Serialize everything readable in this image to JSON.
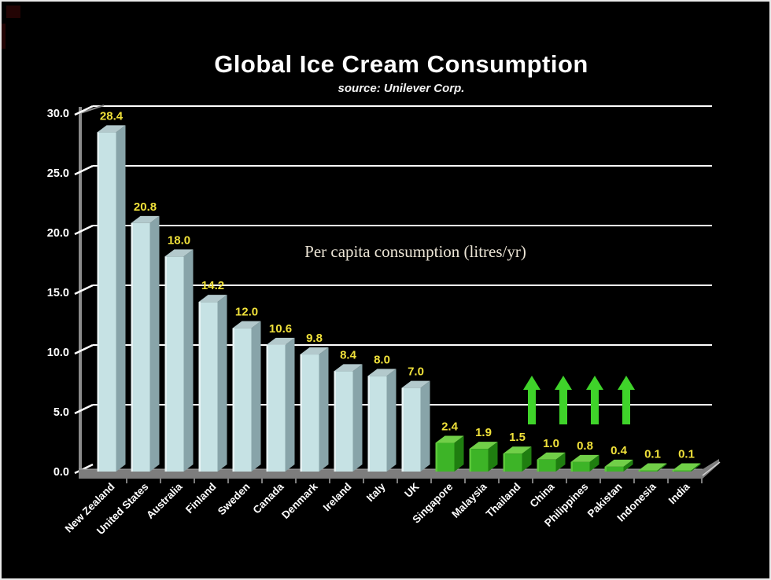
{
  "title": "Global Ice Cream Consumption",
  "subtitle": "source: Unilever Corp.",
  "annotation": "Per capita consumption (litres/yr)",
  "chart_data": {
    "type": "bar",
    "title": "Global Ice Cream Consumption",
    "subtitle": "source: Unilever Corp.",
    "annotation": "Per capita consumption (litres/yr)",
    "categories": [
      "New Zealand",
      "United States",
      "Australia",
      "Finland",
      "Sweden",
      "Canada",
      "Denmark",
      "Ireland",
      "Italy",
      "UK",
      "Singapore",
      "Malaysia",
      "Thailand",
      "China",
      "Philippines",
      "Pakistan",
      "Indonesia",
      "India"
    ],
    "values": [
      28.4,
      20.8,
      18.0,
      14.2,
      12.0,
      10.6,
      9.8,
      8.4,
      8.0,
      7.0,
      2.4,
      1.9,
      1.5,
      1.0,
      0.8,
      0.4,
      0.1,
      0.1
    ],
    "value_labels": [
      "28.4",
      "20.8",
      "18.0",
      "14.2",
      "12.0",
      "10.6",
      "9.8",
      "8.4",
      "8.0",
      "7.0",
      "2.4",
      "1.9",
      "1.5",
      "1.0",
      "0.8",
      "0.4",
      "0.1",
      "0.1"
    ],
    "bar_groups": [
      "high",
      "high",
      "high",
      "high",
      "high",
      "high",
      "high",
      "high",
      "high",
      "high",
      "low",
      "low",
      "low",
      "low",
      "low",
      "low",
      "low",
      "low"
    ],
    "y_ticks": [
      0,
      5,
      10,
      15,
      20,
      25,
      30
    ],
    "y_tick_labels": [
      "0.0",
      "5.0",
      "10.0",
      "15.0",
      "20.0",
      "25.0",
      "30.0"
    ],
    "ylim": [
      0,
      30
    ],
    "grid": true,
    "legend": "none",
    "style": "3d-bars-on-black",
    "colors": {
      "background": "#000000",
      "grid": "#ffffff",
      "axis": "#8a8a8a",
      "floor": "#7d7d7d",
      "value_label": "#f0e13a",
      "tick_label": "#ffffff",
      "category_label": "#ffffff",
      "bar_high": {
        "front": "#c6e2e4",
        "side": "#88a4a9",
        "top": "#b3c9cc",
        "edge": "#e7f3f4"
      },
      "bar_low": {
        "front": "#3db427",
        "side": "#1f7e10",
        "top": "#71cf48",
        "edge": "#5cc93a"
      },
      "arrow": "#3fd32a"
    },
    "up_arrows": {
      "count": 4,
      "region": "above China / Philippines / Pakistan area at the 5.0 gridline"
    }
  }
}
